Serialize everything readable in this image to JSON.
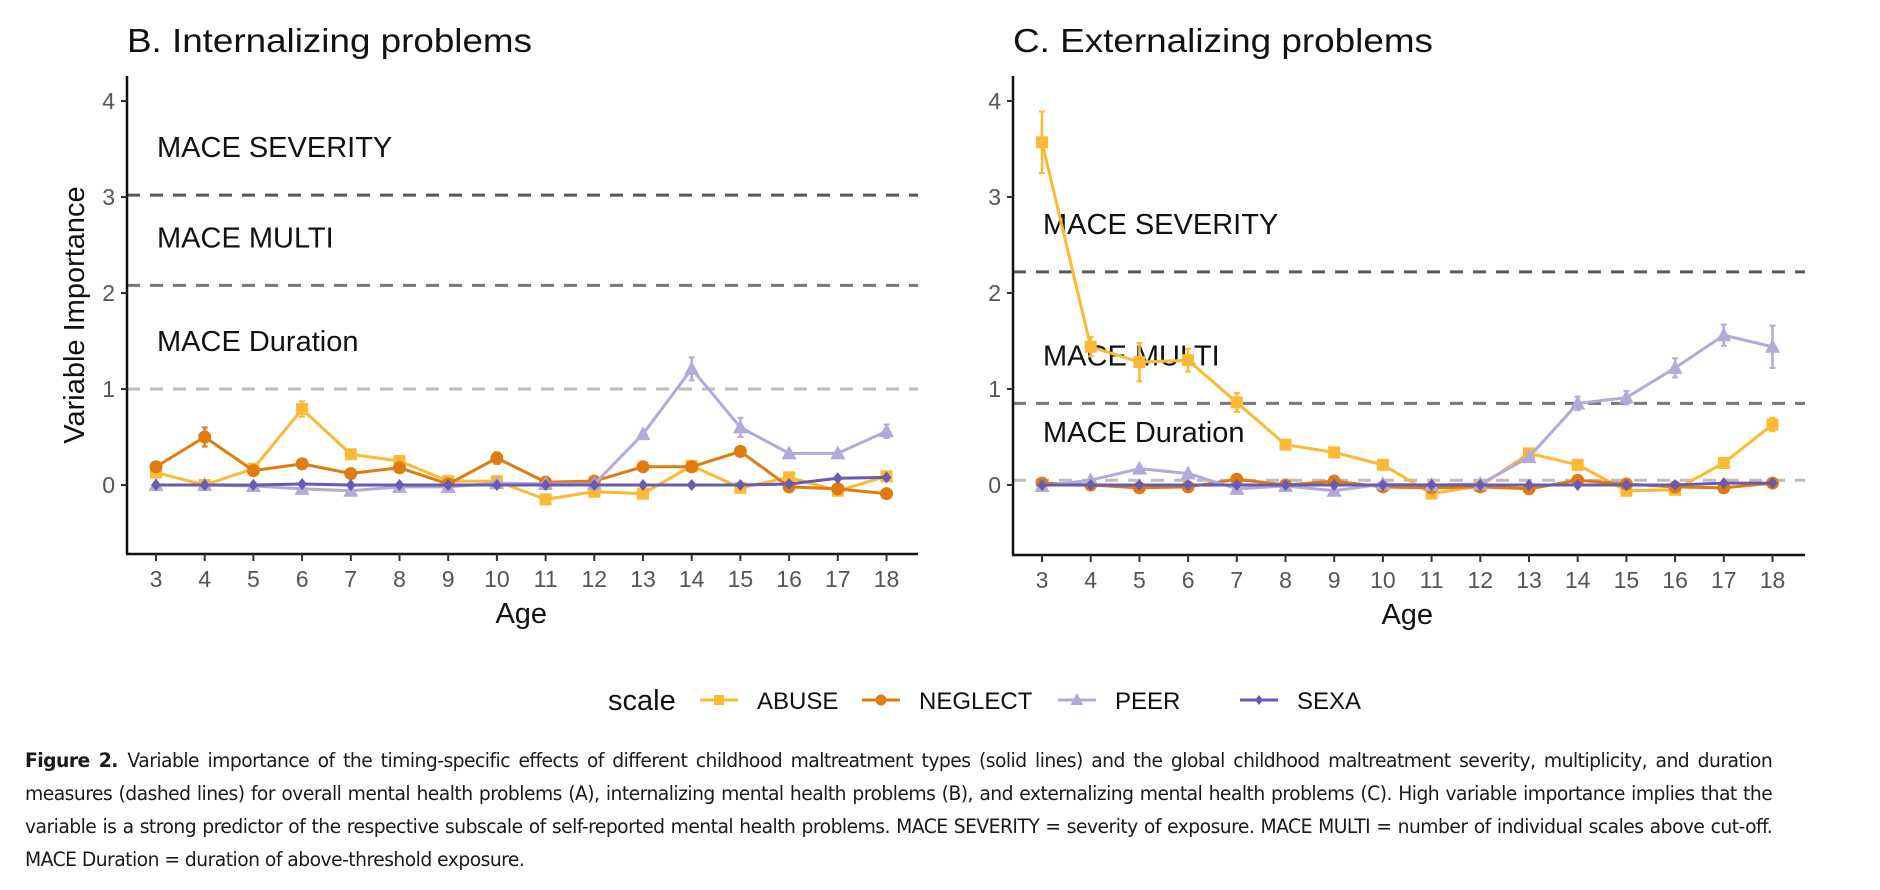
{
  "chart_data": [
    {
      "type": "line",
      "panel": "B",
      "title": "B. Internalizing problems",
      "xlabel": "Age",
      "ylabel": "Variable Importance",
      "x": [
        3,
        4,
        5,
        6,
        7,
        8,
        9,
        10,
        11,
        12,
        13,
        14,
        15,
        16,
        17,
        18
      ],
      "xticks": [
        "3",
        "4",
        "5",
        "6",
        "7",
        "8",
        "9",
        "10",
        "11",
        "12",
        "13",
        "14",
        "15",
        "16",
        "17",
        "18"
      ],
      "yticks": [
        "0",
        "1",
        "2",
        "3",
        "4"
      ],
      "ylim": [
        -0.7,
        4.2
      ],
      "grid": false,
      "reference_lines": [
        {
          "label": "MACE SEVERITY",
          "value": 3.02,
          "style": "dashed"
        },
        {
          "label": "MACE MULTI",
          "value": 2.08,
          "style": "dashed"
        },
        {
          "label": "MACE Duration",
          "value": 1.0,
          "style": "dashed"
        }
      ],
      "series": [
        {
          "name": "ABUSE",
          "values": [
            0.13,
            0.0,
            0.17,
            0.79,
            0.32,
            0.25,
            0.04,
            0.04,
            -0.15,
            -0.07,
            -0.09,
            0.2,
            -0.03,
            0.08,
            -0.06,
            0.09
          ],
          "err": [
            0.03,
            0.02,
            0.03,
            0.08,
            0.04,
            0.03,
            0.02,
            0.03,
            0.03,
            0.02,
            0.03,
            0.03,
            0.02,
            0.03,
            0.03,
            0.03
          ]
        },
        {
          "name": "NEGLECT",
          "values": [
            0.19,
            0.5,
            0.15,
            0.22,
            0.12,
            0.18,
            0.01,
            0.28,
            0.03,
            0.04,
            0.19,
            0.19,
            0.35,
            -0.02,
            -0.04,
            -0.09
          ],
          "err": [
            0.03,
            0.1,
            0.03,
            0.03,
            0.03,
            0.03,
            0.02,
            0.06,
            0.02,
            0.02,
            0.02,
            0.02,
            0.03,
            0.02,
            0.02,
            0.02
          ]
        },
        {
          "name": "PEER",
          "values": [
            0.0,
            0.0,
            -0.01,
            -0.04,
            -0.06,
            -0.02,
            -0.02,
            0.02,
            0.01,
            0.01,
            0.53,
            1.21,
            0.6,
            0.33,
            0.33,
            0.56
          ],
          "err": [
            0.02,
            0.02,
            0.02,
            0.02,
            0.02,
            0.02,
            0.02,
            0.02,
            0.02,
            0.02,
            0.04,
            0.12,
            0.1,
            0.03,
            0.03,
            0.07
          ]
        },
        {
          "name": "SEXA",
          "values": [
            0.0,
            0.0,
            0.0,
            0.01,
            0.0,
            0.0,
            0.0,
            0.0,
            0.0,
            0.0,
            0.0,
            0.0,
            0.0,
            0.01,
            0.07,
            0.08
          ],
          "err": [
            0.01,
            0.01,
            0.01,
            0.01,
            0.01,
            0.01,
            0.01,
            0.01,
            0.01,
            0.01,
            0.01,
            0.01,
            0.01,
            0.01,
            0.02,
            0.02
          ]
        }
      ]
    },
    {
      "type": "line",
      "panel": "C",
      "title": "C. Externalizing problems",
      "xlabel": "Age",
      "ylabel": "",
      "x": [
        3,
        4,
        5,
        6,
        7,
        8,
        9,
        10,
        11,
        12,
        13,
        14,
        15,
        16,
        17,
        18
      ],
      "xticks": [
        "3",
        "4",
        "5",
        "6",
        "7",
        "8",
        "9",
        "10",
        "11",
        "12",
        "13",
        "14",
        "15",
        "16",
        "17",
        "18"
      ],
      "yticks": [
        "0",
        "1",
        "2",
        "3",
        "4"
      ],
      "ylim": [
        -0.7,
        4.2
      ],
      "grid": false,
      "reference_lines": [
        {
          "label": "MACE SEVERITY",
          "value": 2.22,
          "style": "dashed"
        },
        {
          "label": "MACE MULTI",
          "value": 0.85,
          "style": "dashed"
        },
        {
          "label": "MACE Duration",
          "value": 0.05,
          "style": "dashed"
        }
      ],
      "series": [
        {
          "name": "ABUSE",
          "values": [
            3.57,
            1.44,
            1.28,
            1.3,
            0.86,
            0.42,
            0.34,
            0.21,
            -0.09,
            -0.01,
            0.33,
            0.21,
            -0.06,
            -0.05,
            0.23,
            0.63
          ],
          "err": [
            0.32,
            0.1,
            0.2,
            0.12,
            0.1,
            0.05,
            0.05,
            0.03,
            0.03,
            0.02,
            0.03,
            0.03,
            0.03,
            0.03,
            0.03,
            0.07
          ]
        },
        {
          "name": "NEGLECT",
          "values": [
            0.02,
            0.0,
            -0.03,
            -0.02,
            0.06,
            0.0,
            0.04,
            -0.02,
            -0.03,
            -0.02,
            -0.04,
            0.05,
            0.01,
            -0.02,
            -0.03,
            0.02
          ],
          "err": [
            0.02,
            0.02,
            0.02,
            0.02,
            0.02,
            0.02,
            0.02,
            0.02,
            0.02,
            0.02,
            0.02,
            0.02,
            0.02,
            0.02,
            0.02,
            0.02
          ]
        },
        {
          "name": "PEER",
          "values": [
            -0.01,
            0.05,
            0.17,
            0.12,
            -0.04,
            -0.01,
            -0.06,
            0.01,
            0.0,
            0.01,
            0.29,
            0.85,
            0.91,
            1.22,
            1.56,
            1.44
          ],
          "err": [
            0.02,
            0.02,
            0.03,
            0.03,
            0.02,
            0.02,
            0.02,
            0.02,
            0.02,
            0.02,
            0.03,
            0.07,
            0.07,
            0.1,
            0.11,
            0.22
          ]
        },
        {
          "name": "SEXA",
          "values": [
            0.0,
            0.0,
            0.0,
            0.0,
            0.0,
            0.0,
            0.0,
            0.0,
            0.0,
            0.0,
            0.0,
            0.0,
            0.0,
            0.0,
            0.02,
            0.02
          ],
          "err": [
            0.01,
            0.01,
            0.01,
            0.01,
            0.01,
            0.01,
            0.01,
            0.01,
            0.01,
            0.01,
            0.01,
            0.01,
            0.01,
            0.01,
            0.01,
            0.01
          ]
        }
      ]
    }
  ],
  "legend": {
    "title": "scale",
    "position": "bottom",
    "items": [
      {
        "name": "ABUSE",
        "color": "#FBB934",
        "marker": "square"
      },
      {
        "name": "NEGLECT",
        "color": "#E07B10",
        "marker": "circle"
      },
      {
        "name": "PEER",
        "color": "#B3A9DA",
        "marker": "triangle"
      },
      {
        "name": "SEXA",
        "color": "#6A5AB0",
        "marker": "diamond"
      }
    ]
  },
  "ref_line_colors": {
    "MACE SEVERITY": "#595959",
    "MACE MULTI": "#777777",
    "MACE Duration": "#bdbdbd"
  },
  "caption": {
    "label": "Figure 2.",
    "text": "Variable importance of the timing-specific effects of different childhood maltreatment types (solid lines) and the global childhood maltreatment severity, multiplicity, and duration measures (dashed lines) for overall mental health problems (A), internalizing mental health problems (B), and externalizing mental health problems (C). High variable importance implies that the variable is a strong predictor of the respective subscale of self-reported mental health problems. MACE SEVERITY = severity of exposure. MACE MULTI = number of individual scales above cut-off. MACE Duration = duration of above-threshold exposure."
  }
}
